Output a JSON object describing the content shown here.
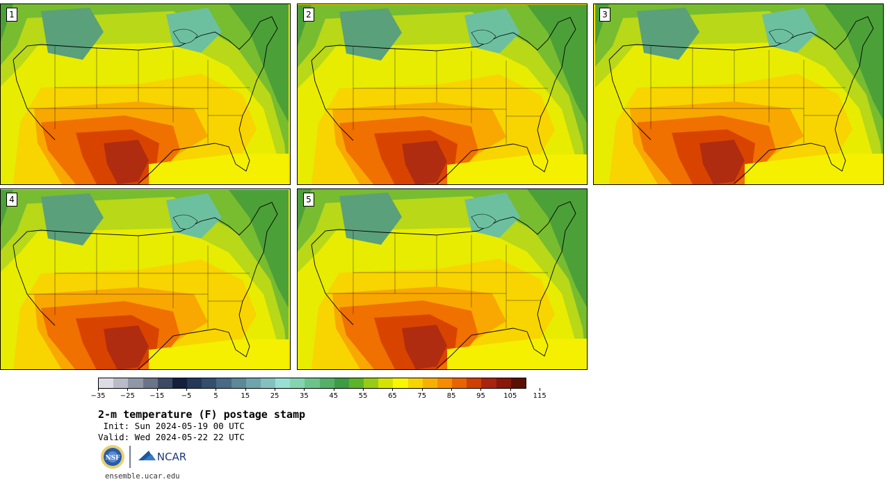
{
  "panels": [
    {
      "label": "1"
    },
    {
      "label": "2"
    },
    {
      "label": "3"
    },
    {
      "label": "4"
    },
    {
      "label": "5"
    }
  ],
  "colorbar": {
    "colors": [
      "#dcdce4",
      "#b8bcc8",
      "#9098a8",
      "#6c7488",
      "#3c4a64",
      "#14203c",
      "#24385a",
      "#344e70",
      "#486a84",
      "#5c8898",
      "#70a4ac",
      "#84c0c0",
      "#98e0d4",
      "#84d4b0",
      "#6cc48c",
      "#54b068",
      "#3c9c44",
      "#5cb428",
      "#98cc14",
      "#d4e400",
      "#f8f800",
      "#f8d400",
      "#f8b000",
      "#f88c00",
      "#e86400",
      "#d04000",
      "#a82410",
      "#881808",
      "#5c1004"
    ],
    "tick_labels": [
      "−35",
      "−25",
      "−15",
      "−5",
      "5",
      "15",
      "25",
      "35",
      "45",
      "55",
      "65",
      "75",
      "85",
      "95",
      "105",
      "115"
    ]
  },
  "title": "2-m temperature (F) postage stamp",
  "init": " Init: Sun 2024-05-19 00 UTC",
  "valid": "Valid: Wed 2024-05-22 22 UTC",
  "logos": {
    "left": "NSF",
    "right": "NCAR"
  },
  "url": "ensemble.ucar.edu"
}
